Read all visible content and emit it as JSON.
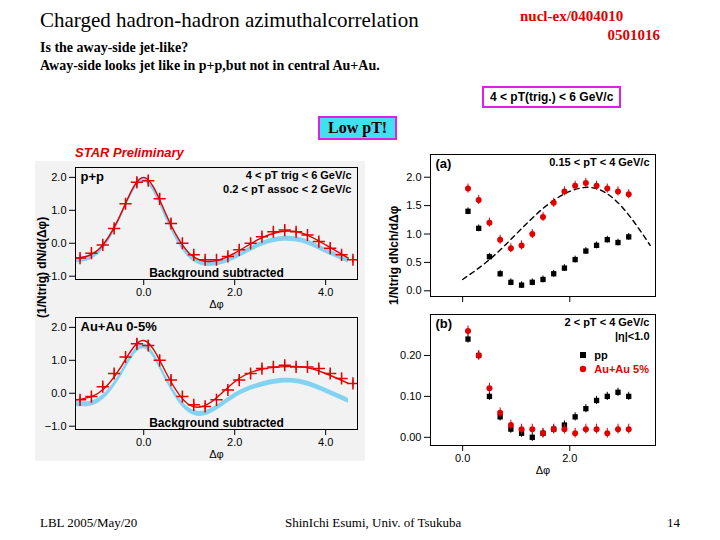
{
  "slide": {
    "title": "Charged hadron-hadron azimuthalcorrelation",
    "subtitle": [
      "Is the away-side jet-like?",
      "Away-side looks jet like in p+p,but not in central Au+Au."
    ],
    "references": [
      "nucl-ex/0404010",
      "0501016"
    ],
    "trigger_label": "4 < pT(trig.) < 6 GeV/c",
    "callout": "Low pT!",
    "footer": {
      "left": "LBL 2005/May/20",
      "center": "ShinIchi Esumi, Univ. of Tsukuba",
      "page": 14
    }
  },
  "chart_data": [
    {
      "type": "scatter",
      "header": "STAR Preliminary",
      "title": "p+p",
      "annotations": [
        "4 < pT trig < 6 GeV/c",
        "0.2 < pT assoc < 2 GeV/c"
      ],
      "footnote": "Background subtracted",
      "x_label": "Δφ",
      "y_label": "(1/Ntrig) dN/d(Δφ)",
      "xlim": [
        -1.5,
        4.7
      ],
      "xticks": [
        0,
        2,
        4
      ],
      "ylim": [
        -1.1,
        2.3
      ],
      "yticks": [
        -1,
        0,
        1,
        2
      ],
      "series": [
        {
          "type": "band",
          "color": "#5bc8f0",
          "x": [
            -1.5,
            -1,
            -0.5,
            0,
            0.5,
            1,
            1.5,
            2,
            2.5,
            3,
            3.5,
            4,
            4.5
          ],
          "lower": [
            -0.6,
            -0.35,
            0.75,
            1.85,
            0.7,
            -0.45,
            -0.7,
            -0.5,
            -0.15,
            0.05,
            0.0,
            -0.3,
            -0.6
          ],
          "upper": [
            -0.45,
            -0.2,
            0.9,
            2.0,
            0.85,
            -0.3,
            -0.55,
            -0.35,
            0.0,
            0.2,
            0.15,
            -0.15,
            -0.45
          ]
        },
        {
          "type": "line",
          "color": "#e00000",
          "x": [
            -1.5,
            -1,
            -0.5,
            0,
            0.5,
            1,
            1.5,
            2,
            2.5,
            3,
            3.5,
            4,
            4.5
          ],
          "values": [
            -0.45,
            -0.2,
            0.9,
            2.0,
            0.85,
            -0.3,
            -0.55,
            -0.3,
            0.1,
            0.35,
            0.3,
            -0.05,
            -0.45
          ]
        },
        {
          "type": "scatter",
          "marker": "cross",
          "color": "#e00000",
          "x": [
            -1.4,
            -1.15,
            -0.9,
            -0.65,
            -0.4,
            -0.15,
            0.1,
            0.35,
            0.6,
            0.85,
            1.1,
            1.35,
            1.6,
            1.85,
            2.1,
            2.35,
            2.6,
            2.85,
            3.1,
            3.35,
            3.6,
            3.85,
            4.1,
            4.35,
            4.6
          ],
          "values": [
            -0.45,
            -0.3,
            -0.05,
            0.45,
            1.2,
            1.85,
            1.9,
            1.35,
            0.6,
            0.0,
            -0.35,
            -0.5,
            -0.5,
            -0.4,
            -0.2,
            0.0,
            0.2,
            0.35,
            0.4,
            0.35,
            0.25,
            0.05,
            -0.15,
            -0.35,
            -0.5
          ],
          "errors": [
            0.1,
            0.1,
            0.1,
            0.12,
            0.15,
            0.15,
            0.15,
            0.15,
            0.12,
            0.1,
            0.1,
            0.1,
            0.1,
            0.1,
            0.1,
            0.1,
            0.1,
            0.1,
            0.1,
            0.1,
            0.1,
            0.1,
            0.1,
            0.1,
            0.1
          ]
        }
      ]
    },
    {
      "type": "scatter",
      "title": "Au+Au 0-5%",
      "footnote": "Background subtracted",
      "x_label": "Δφ",
      "xlim": [
        -1.5,
        4.7
      ],
      "xticks": [
        0,
        2,
        4
      ],
      "ylim": [
        -1.1,
        2.3
      ],
      "yticks": [
        -1,
        0,
        1,
        2
      ],
      "series": [
        {
          "type": "band",
          "color": "#5bc8f0",
          "x": [
            -1.5,
            -1,
            -0.5,
            0,
            0.5,
            1,
            1.5,
            2,
            2.5,
            3,
            3.5,
            4,
            4.5
          ],
          "lower": [
            -0.4,
            -0.3,
            0.5,
            1.35,
            0.35,
            -0.6,
            -0.6,
            -0.15,
            0.15,
            0.3,
            0.25,
            0.0,
            -0.3
          ],
          "upper": [
            -0.25,
            -0.15,
            0.65,
            1.5,
            0.5,
            -0.45,
            -0.45,
            0.0,
            0.3,
            0.45,
            0.4,
            0.15,
            -0.15
          ]
        },
        {
          "type": "line",
          "color": "#e00000",
          "x": [
            -1.5,
            -1,
            -0.5,
            0,
            0.5,
            1,
            1.5,
            2,
            2.5,
            3,
            3.5,
            4,
            4.5
          ],
          "values": [
            -0.2,
            0.0,
            0.8,
            1.6,
            0.6,
            -0.35,
            -0.25,
            0.35,
            0.7,
            0.8,
            0.8,
            0.6,
            0.3
          ]
        },
        {
          "type": "scatter",
          "marker": "cross",
          "color": "#e00000",
          "x": [
            -1.4,
            -1.15,
            -0.9,
            -0.65,
            -0.4,
            -0.15,
            0.1,
            0.35,
            0.6,
            0.85,
            1.1,
            1.35,
            1.6,
            1.85,
            2.1,
            2.35,
            2.6,
            2.85,
            3.1,
            3.35,
            3.6,
            3.85,
            4.1,
            4.35,
            4.6
          ],
          "values": [
            -0.2,
            -0.1,
            0.2,
            0.6,
            1.1,
            1.5,
            1.45,
            1.0,
            0.4,
            -0.1,
            -0.35,
            -0.4,
            -0.2,
            0.1,
            0.4,
            0.6,
            0.75,
            0.8,
            0.85,
            0.8,
            0.8,
            0.75,
            0.6,
            0.45,
            0.3
          ],
          "errors": [
            0.1,
            0.1,
            0.1,
            0.12,
            0.15,
            0.15,
            0.15,
            0.15,
            0.12,
            0.1,
            0.1,
            0.1,
            0.1,
            0.1,
            0.1,
            0.1,
            0.1,
            0.1,
            0.1,
            0.1,
            0.1,
            0.1,
            0.1,
            0.1,
            0.1
          ]
        }
      ]
    },
    {
      "type": "scatter",
      "title": "(a)",
      "annotations": [
        "0.15 < pT < 4 GeV/c"
      ],
      "y_label": "1/Ntrig dNch/dΔφ",
      "tick_labels": "y",
      "xlim": [
        -0.6,
        3.6
      ],
      "xticks": [
        0,
        2
      ],
      "ylim": [
        -0.1,
        2.4
      ],
      "yticks": [
        0,
        0.5,
        1,
        1.5,
        2
      ],
      "series": [
        {
          "type": "line",
          "line_style": "dashed",
          "color": "#000000",
          "x": [
            0,
            0.5,
            1,
            1.5,
            2,
            2.5,
            3,
            3.5
          ],
          "values": [
            0.2,
            0.55,
            1.0,
            1.45,
            1.75,
            1.8,
            1.45,
            0.8
          ]
        },
        {
          "name": "pp",
          "type": "scatter",
          "marker": "square",
          "color": "#000000",
          "x": [
            0.1,
            0.3,
            0.5,
            0.7,
            0.9,
            1.1,
            1.3,
            1.5,
            1.7,
            1.9,
            2.1,
            2.3,
            2.5,
            2.7,
            2.9,
            3.1
          ],
          "values": [
            1.4,
            1.1,
            0.6,
            0.3,
            0.15,
            0.1,
            0.15,
            0.2,
            0.3,
            0.4,
            0.55,
            0.7,
            0.8,
            0.9,
            0.85,
            0.95
          ],
          "errors": [
            0.06,
            0.06,
            0.06,
            0.06,
            0.06,
            0.06,
            0.06,
            0.06,
            0.06,
            0.06,
            0.06,
            0.06,
            0.06,
            0.06,
            0.06,
            0.06
          ]
        },
        {
          "name": "Au+Au 5%",
          "type": "scatter",
          "marker": "circle",
          "color": "#e00000",
          "x": [
            0.1,
            0.3,
            0.5,
            0.7,
            0.9,
            1.1,
            1.3,
            1.5,
            1.7,
            1.9,
            2.1,
            2.3,
            2.5,
            2.7,
            2.9,
            3.1
          ],
          "values": [
            1.8,
            1.6,
            1.2,
            0.9,
            0.75,
            0.8,
            1.0,
            1.3,
            1.55,
            1.75,
            1.85,
            1.9,
            1.85,
            1.8,
            1.75,
            1.7
          ],
          "errors": [
            0.08,
            0.08,
            0.08,
            0.08,
            0.08,
            0.08,
            0.08,
            0.08,
            0.08,
            0.08,
            0.08,
            0.08,
            0.08,
            0.08,
            0.08,
            0.08
          ]
        }
      ]
    },
    {
      "type": "scatter",
      "title": "(b)",
      "annotations": [
        "2 < pT < 4 GeV/c",
        "|η|<1.0"
      ],
      "legend": "right",
      "x_label": "Δφ",
      "xlim": [
        -0.6,
        3.6
      ],
      "xticks": [
        0,
        2
      ],
      "ylim": [
        -0.02,
        0.3
      ],
      "yticks": [
        0,
        0.1,
        0.2
      ],
      "series": [
        {
          "name": "pp",
          "type": "scatter",
          "marker": "square",
          "color": "#000000",
          "x": [
            0.1,
            0.3,
            0.5,
            0.7,
            0.9,
            1.1,
            1.3,
            1.5,
            1.7,
            1.9,
            2.1,
            2.3,
            2.5,
            2.7,
            2.9,
            3.1
          ],
          "values": [
            0.24,
            0.2,
            0.1,
            0.05,
            0.02,
            0.01,
            0.0,
            0.01,
            0.02,
            0.03,
            0.05,
            0.07,
            0.09,
            0.1,
            0.11,
            0.1
          ],
          "errors": [
            0.01,
            0.01,
            0.01,
            0.01,
            0.01,
            0.01,
            0.01,
            0.01,
            0.01,
            0.01,
            0.01,
            0.01,
            0.01,
            0.01,
            0.01,
            0.01
          ]
        },
        {
          "name": "Au+Au 5%",
          "type": "scatter",
          "marker": "circle",
          "color": "#e00000",
          "x": [
            0.1,
            0.3,
            0.5,
            0.7,
            0.9,
            1.1,
            1.3,
            1.5,
            1.7,
            1.9,
            2.1,
            2.3,
            2.5,
            2.7,
            2.9,
            3.1
          ],
          "values": [
            0.26,
            0.2,
            0.12,
            0.06,
            0.03,
            0.02,
            0.02,
            0.01,
            0.02,
            0.02,
            0.01,
            0.02,
            0.02,
            0.01,
            0.02,
            0.02
          ],
          "errors": [
            0.012,
            0.012,
            0.012,
            0.012,
            0.012,
            0.012,
            0.012,
            0.012,
            0.012,
            0.012,
            0.012,
            0.012,
            0.012,
            0.012,
            0.012,
            0.012
          ]
        }
      ]
    }
  ]
}
